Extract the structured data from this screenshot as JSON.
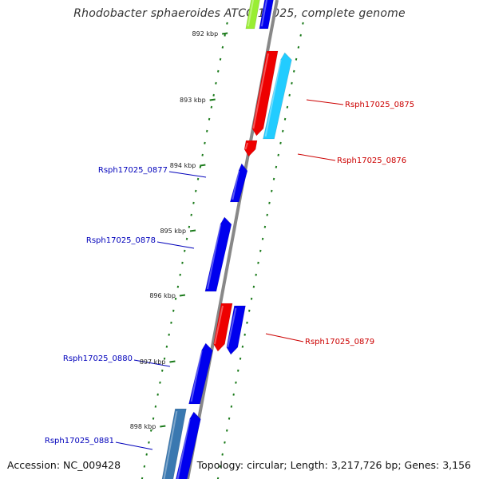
{
  "title": "Rhodobacter sphaeroides ATCC 17025, complete genome",
  "footer": {
    "accession": "Accession: NC_009428",
    "summary": "Topology: circular; Length: 3,217,726 bp; Genes: 3,156"
  },
  "colors": {
    "backbone": "#888888",
    "tick": "#1a7a1a",
    "red_gene": "#ee0000",
    "blue_gene": "#0000ee",
    "cyan_gene": "#22ccff",
    "steel_gene": "#3a78b0",
    "lime_gene": "#99ee33",
    "red_label": "#cc0000",
    "blue_label": "#0000bb"
  },
  "ticks": [
    "892 kbp",
    "893 kbp",
    "894 kbp",
    "895 kbp",
    "896 kbp",
    "897 kbp",
    "898 kbp"
  ],
  "labels": [
    {
      "text": "Rsph17025_0875",
      "color": "red"
    },
    {
      "text": "Rsph17025_0876",
      "color": "red"
    },
    {
      "text": "Rsph17025_0877",
      "color": "blue"
    },
    {
      "text": "Rsph17025_0878",
      "color": "blue"
    },
    {
      "text": "Rsph17025_0879",
      "color": "red"
    },
    {
      "text": "Rsph17025_0880",
      "color": "blue"
    },
    {
      "text": "Rsph17025_0881",
      "color": "blue"
    }
  ]
}
